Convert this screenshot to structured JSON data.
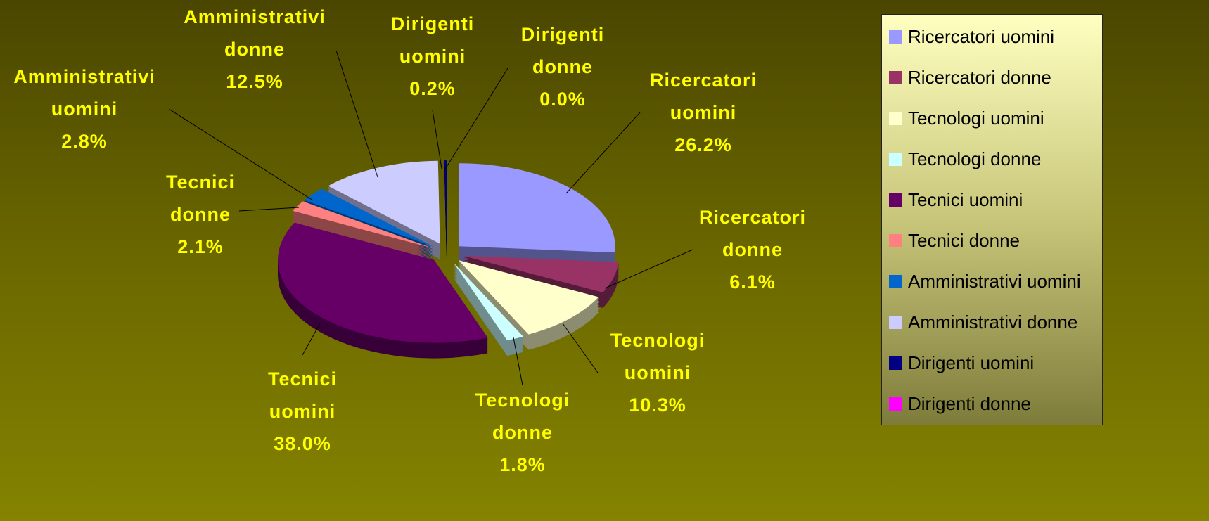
{
  "chart_data": {
    "type": "pie",
    "categories": [
      "Ricercatori uomini",
      "Ricercatori donne",
      "Tecnologi uomini",
      "Tecnologi donne",
      "Tecnici uomini",
      "Tecnici donne",
      "Amministrativi uomini",
      "Amministrativi donne",
      "Dirigenti uomini",
      "Dirigenti donne"
    ],
    "values": [
      26.2,
      6.1,
      10.3,
      1.8,
      38.0,
      2.1,
      2.8,
      12.5,
      0.2,
      0
    ],
    "value_labels": [
      "26.2%",
      "6.1%",
      "10.3%",
      "1.8%",
      "38.0%",
      "2.1%",
      "2.8%",
      "12.5%",
      "0.2%",
      "0.0%"
    ],
    "colors": [
      "#9999ff",
      "#993366",
      "#ffffcc",
      "#ccffff",
      "#660066",
      "#ff8080",
      "#0066cc",
      "#ccccff",
      "#000080",
      "#ff00ff"
    ],
    "legend": "right"
  }
}
